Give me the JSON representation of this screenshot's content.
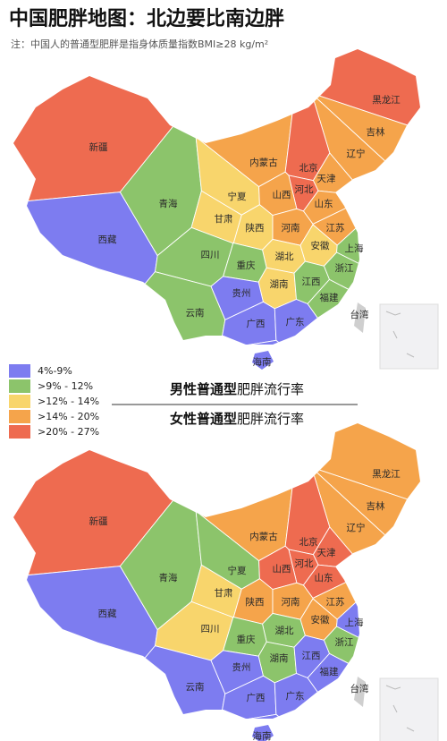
{
  "title": "中国肥胖地图：北边要比南边胖",
  "subtitle": "注：中国人的普通型肥胖是指身体质量指数BMI≥28 kg/m²",
  "legend": {
    "labels": [
      "4%-9%",
      ">9% - 12%",
      ">12% - 14%",
      ">14% - 20%",
      ">20% - 27%"
    ],
    "colors": [
      "#7d7cf0",
      "#8cc46b",
      "#f8d56c",
      "#f5a44b",
      "#ee6b50"
    ]
  },
  "no_data_color": "#cfcfcf",
  "provinces": [
    "新疆",
    "西藏",
    "青海",
    "甘肃",
    "宁夏",
    "内蒙古",
    "黑龙江",
    "吉林",
    "辽宁",
    "北京",
    "天津",
    "河北",
    "山西",
    "山东",
    "陕西",
    "河南",
    "江苏",
    "安徽",
    "上海",
    "湖北",
    "四川",
    "重庆",
    "浙江",
    "湖南",
    "江西",
    "福建",
    "贵州",
    "云南",
    "广西",
    "广东",
    "海南",
    "台湾"
  ],
  "maps": [
    {
      "title_bold": "男性普通型",
      "title_rest": "肥胖流行率",
      "classes": [
        4,
        0,
        1,
        2,
        2,
        3,
        4,
        3,
        3,
        4,
        3,
        4,
        3,
        3,
        2,
        3,
        3,
        2,
        1,
        2,
        1,
        1,
        1,
        2,
        1,
        1,
        0,
        1,
        0,
        0,
        0,
        null
      ]
    },
    {
      "title_bold": "女性普通型",
      "title_rest": "肥胖流行率",
      "classes": [
        4,
        0,
        1,
        2,
        1,
        3,
        3,
        3,
        3,
        4,
        4,
        4,
        4,
        4,
        3,
        3,
        3,
        3,
        0,
        1,
        2,
        1,
        1,
        1,
        0,
        0,
        0,
        0,
        0,
        0,
        0,
        null
      ]
    }
  ]
}
